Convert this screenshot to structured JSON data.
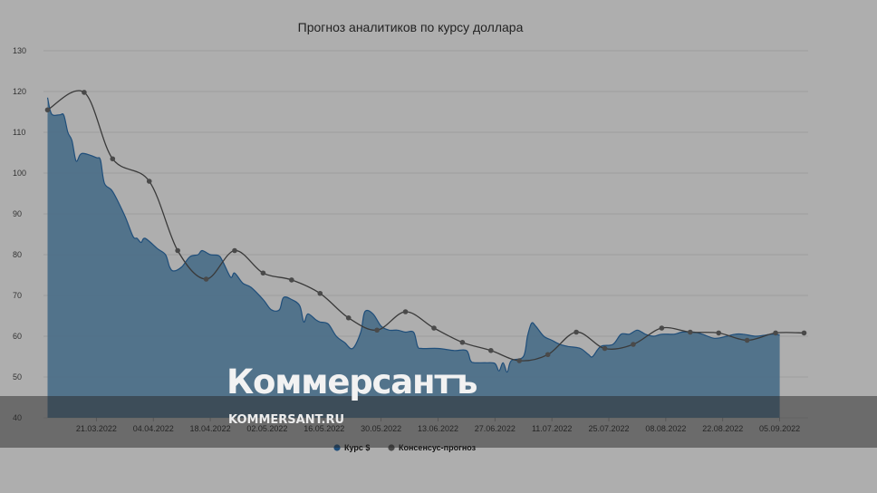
{
  "chart_data": {
    "type": "area",
    "title": "Прогноз аналитиков по курсу доллара",
    "xlabel": "",
    "ylabel": "",
    "ylim": [
      40,
      130
    ],
    "yticks": [
      40,
      50,
      60,
      70,
      80,
      90,
      100,
      110,
      120,
      130
    ],
    "xlim": [
      "2022-03-08",
      "2022-09-12"
    ],
    "xticks": [
      "21.03.2022",
      "04.04.2022",
      "18.04.2022",
      "02.05.2022",
      "16.05.2022",
      "30.05.2022",
      "13.06.2022",
      "27.06.2022",
      "11.07.2022",
      "25.07.2022",
      "08.08.2022",
      "22.08.2022",
      "05.09.2022"
    ],
    "grid": true,
    "legend_position": "bottom",
    "series": [
      {
        "name": "Курс $",
        "kind": "area",
        "color": "#1f4e7a",
        "points": [
          [
            "2022-03-09",
            118.5
          ],
          [
            "2022-03-10",
            114.5
          ],
          [
            "2022-03-12",
            114.3
          ],
          [
            "2022-03-13",
            114.2
          ],
          [
            "2022-03-14",
            110.0
          ],
          [
            "2022-03-15",
            108.0
          ],
          [
            "2022-03-16",
            103.0
          ],
          [
            "2022-03-17",
            104.5
          ],
          [
            "2022-03-18",
            104.8
          ],
          [
            "2022-03-21",
            103.8
          ],
          [
            "2022-03-22",
            103.2
          ],
          [
            "2022-03-23",
            97.5
          ],
          [
            "2022-03-25",
            95.5
          ],
          [
            "2022-03-28",
            89.5
          ],
          [
            "2022-03-30",
            84.5
          ],
          [
            "2022-03-31",
            84.0
          ],
          [
            "2022-04-01",
            83.0
          ],
          [
            "2022-04-02",
            84.0
          ],
          [
            "2022-04-05",
            81.5
          ],
          [
            "2022-04-07",
            80.0
          ],
          [
            "2022-04-08",
            77.0
          ],
          [
            "2022-04-09",
            76.0
          ],
          [
            "2022-04-11",
            77.0
          ],
          [
            "2022-04-13",
            79.5
          ],
          [
            "2022-04-15",
            80.0
          ],
          [
            "2022-04-16",
            81.0
          ],
          [
            "2022-04-18",
            80.0
          ],
          [
            "2022-04-20",
            79.8
          ],
          [
            "2022-04-21",
            78.5
          ],
          [
            "2022-04-23",
            74.5
          ],
          [
            "2022-04-24",
            75.5
          ],
          [
            "2022-04-26",
            73.0
          ],
          [
            "2022-04-28",
            72.0
          ],
          [
            "2022-05-01",
            69.0
          ],
          [
            "2022-05-03",
            66.5
          ],
          [
            "2022-05-05",
            66.5
          ],
          [
            "2022-05-06",
            69.5
          ],
          [
            "2022-05-08",
            69.0
          ],
          [
            "2022-05-10",
            67.5
          ],
          [
            "2022-05-11",
            63.5
          ],
          [
            "2022-05-12",
            65.5
          ],
          [
            "2022-05-14",
            64.0
          ],
          [
            "2022-05-15",
            63.5
          ],
          [
            "2022-05-17",
            63.0
          ],
          [
            "2022-05-19",
            60.0
          ],
          [
            "2022-05-21",
            58.5
          ],
          [
            "2022-05-23",
            57.0
          ],
          [
            "2022-05-25",
            61.0
          ],
          [
            "2022-05-26",
            66.0
          ],
          [
            "2022-05-28",
            65.5
          ],
          [
            "2022-05-30",
            62.5
          ],
          [
            "2022-06-01",
            61.5
          ],
          [
            "2022-06-03",
            61.5
          ],
          [
            "2022-06-05",
            61.0
          ],
          [
            "2022-06-07",
            61.0
          ],
          [
            "2022-06-08",
            57.5
          ],
          [
            "2022-06-09",
            57.0
          ],
          [
            "2022-06-13",
            57.0
          ],
          [
            "2022-06-17",
            56.5
          ],
          [
            "2022-06-20",
            56.5
          ],
          [
            "2022-06-21",
            54.0
          ],
          [
            "2022-06-22",
            53.5
          ],
          [
            "2022-06-25",
            53.5
          ],
          [
            "2022-06-27",
            53.3
          ],
          [
            "2022-06-28",
            51.5
          ],
          [
            "2022-06-29",
            53.5
          ],
          [
            "2022-06-30",
            51.2
          ],
          [
            "2022-07-01",
            54.0
          ],
          [
            "2022-07-04",
            55.0
          ],
          [
            "2022-07-05",
            60.0
          ],
          [
            "2022-07-06",
            63.2
          ],
          [
            "2022-07-07",
            62.5
          ],
          [
            "2022-07-09",
            60.0
          ],
          [
            "2022-07-11",
            59.0
          ],
          [
            "2022-07-13",
            58.0
          ],
          [
            "2022-07-15",
            57.5
          ],
          [
            "2022-07-18",
            57.0
          ],
          [
            "2022-07-20",
            55.5
          ],
          [
            "2022-07-21",
            55.0
          ],
          [
            "2022-07-23",
            57.5
          ],
          [
            "2022-07-26",
            58.0
          ],
          [
            "2022-07-28",
            60.5
          ],
          [
            "2022-07-30",
            60.5
          ],
          [
            "2022-08-01",
            61.5
          ],
          [
            "2022-08-03",
            60.5
          ],
          [
            "2022-08-05",
            60.0
          ],
          [
            "2022-08-07",
            60.5
          ],
          [
            "2022-08-10",
            60.5
          ],
          [
            "2022-08-12",
            61.0
          ],
          [
            "2022-08-15",
            61.0
          ],
          [
            "2022-08-17",
            60.5
          ],
          [
            "2022-08-20",
            59.5
          ],
          [
            "2022-08-23",
            60.0
          ],
          [
            "2022-08-25",
            60.5
          ],
          [
            "2022-08-27",
            60.5
          ],
          [
            "2022-08-30",
            60.0
          ],
          [
            "2022-09-01",
            60.2
          ],
          [
            "2022-09-03",
            60.5
          ],
          [
            "2022-09-05",
            60.3
          ]
        ]
      },
      {
        "name": "Консенсус-прогноз",
        "kind": "line",
        "color": "#444444",
        "points": [
          [
            "2022-03-09",
            115.5
          ],
          [
            "2022-03-18",
            119.8
          ],
          [
            "2022-03-25",
            103.5
          ],
          [
            "2022-04-03",
            98.0
          ],
          [
            "2022-04-10",
            81.0
          ],
          [
            "2022-04-17",
            74.0
          ],
          [
            "2022-04-24",
            81.0
          ],
          [
            "2022-05-01",
            75.5
          ],
          [
            "2022-05-08",
            73.8
          ],
          [
            "2022-05-15",
            70.5
          ],
          [
            "2022-05-22",
            64.5
          ],
          [
            "2022-05-29",
            61.5
          ],
          [
            "2022-06-05",
            66.0
          ],
          [
            "2022-06-12",
            62.0
          ],
          [
            "2022-06-19",
            58.5
          ],
          [
            "2022-06-26",
            56.5
          ],
          [
            "2022-07-03",
            54.0
          ],
          [
            "2022-07-10",
            55.5
          ],
          [
            "2022-07-17",
            61.0
          ],
          [
            "2022-07-24",
            57.0
          ],
          [
            "2022-07-31",
            58.0
          ],
          [
            "2022-08-07",
            62.0
          ],
          [
            "2022-08-14",
            61.0
          ],
          [
            "2022-08-21",
            60.8
          ],
          [
            "2022-08-28",
            59.0
          ],
          [
            "2022-09-04",
            60.8
          ],
          [
            "2022-09-11",
            60.8
          ]
        ]
      }
    ]
  },
  "watermark": {
    "logo": "Коммерсантъ",
    "url": "KOMMERSANT.RU"
  }
}
